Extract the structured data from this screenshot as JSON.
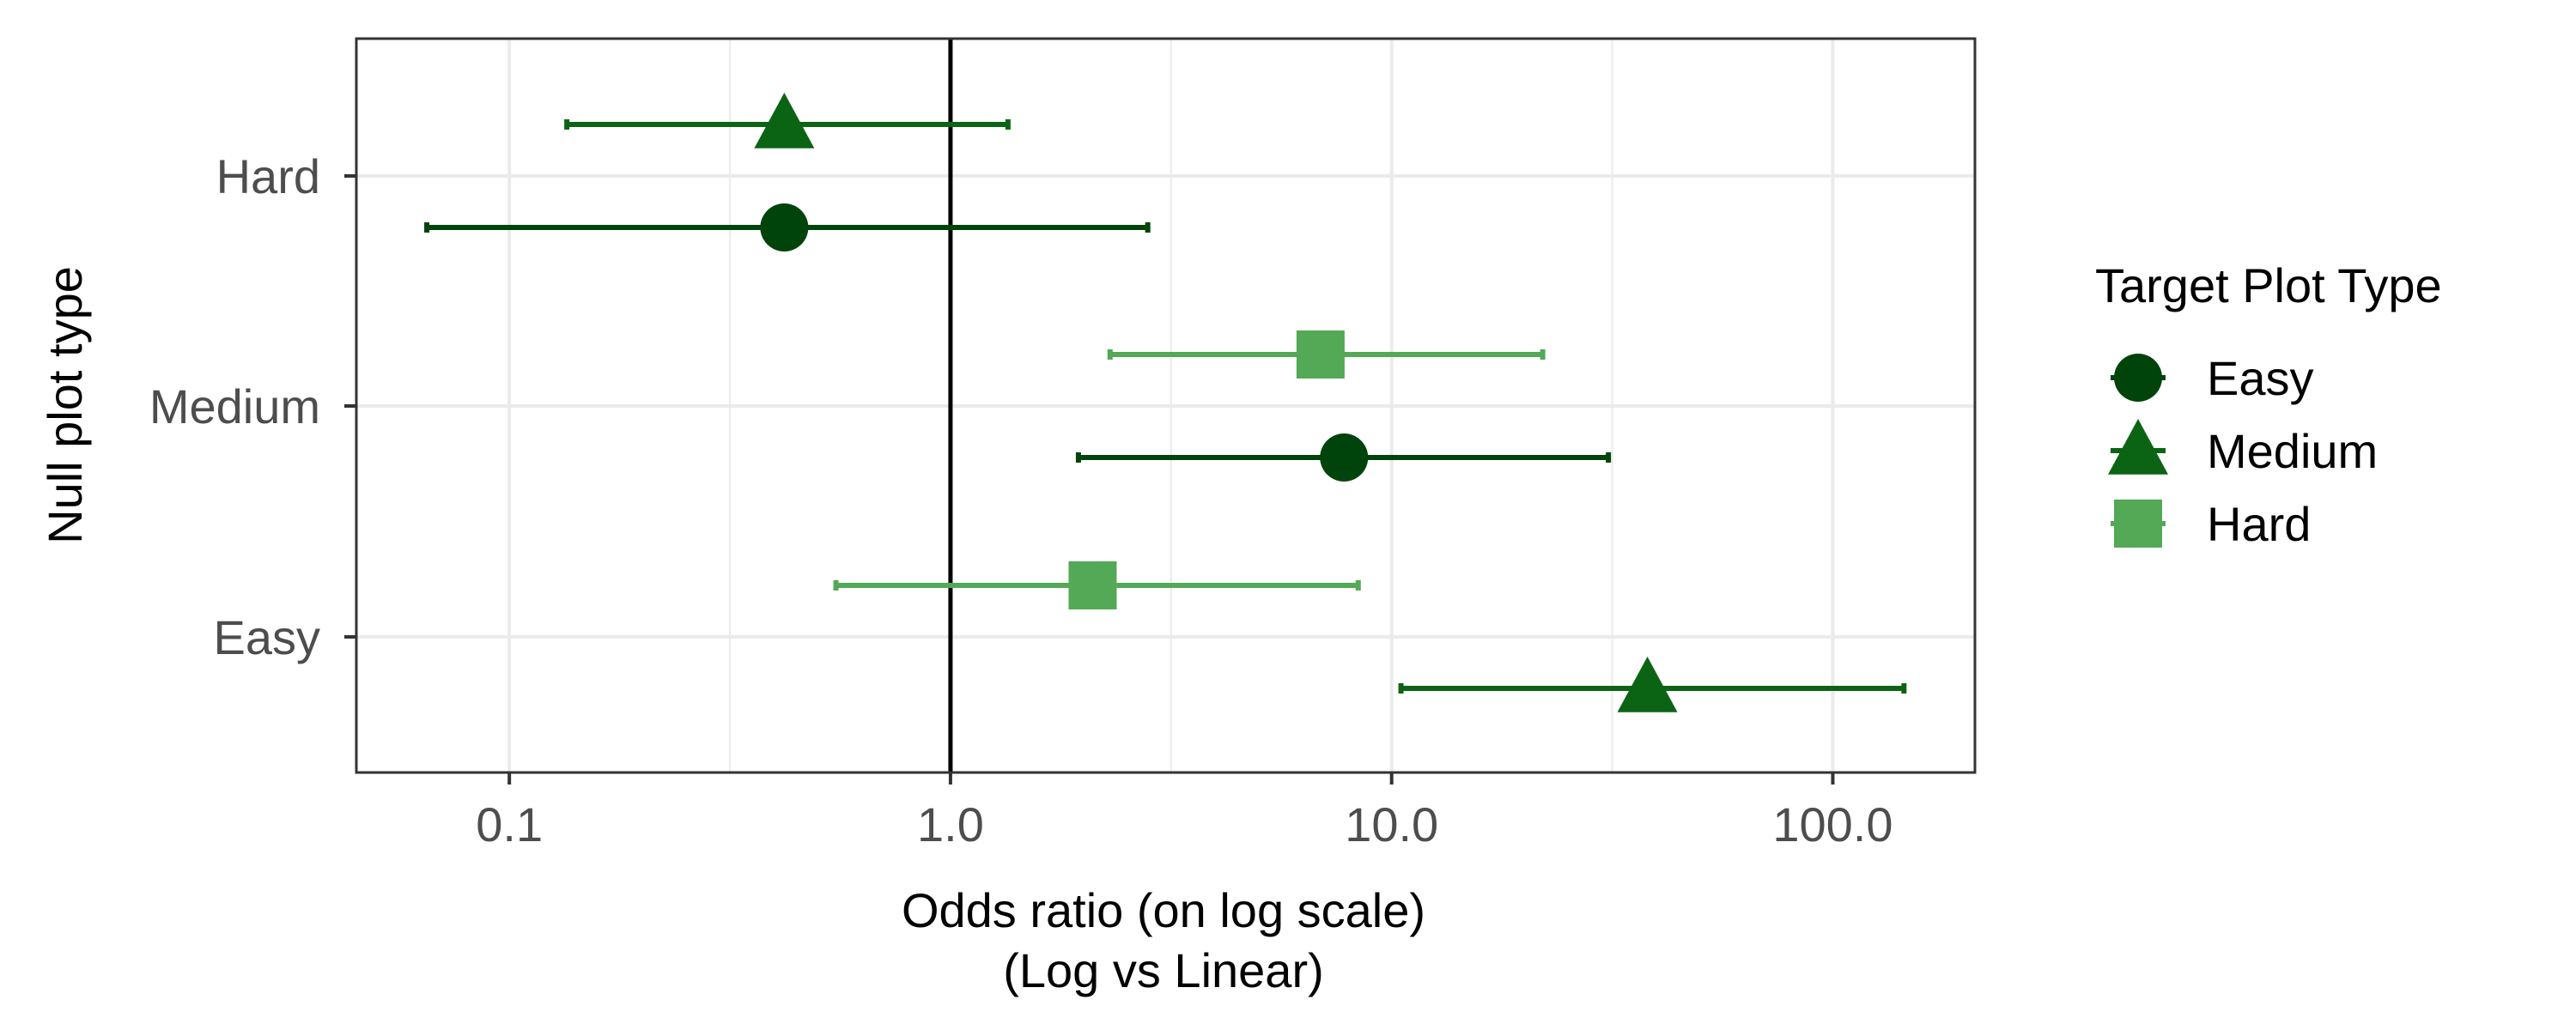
{
  "chart_data": {
    "type": "scatter",
    "title": "",
    "xlabel": "Odds ratio (on log scale)",
    "xlabel_line2": "(Log vs Linear)",
    "ylabel": "Null plot type",
    "x_scale": "log10",
    "xlim": [
      0.045,
      210
    ],
    "x_ticks": [
      0.1,
      1.0,
      10.0,
      100.0
    ],
    "x_tick_labels": [
      "0.1",
      "1.0",
      "10.0",
      "100.0"
    ],
    "categories": [
      "Easy",
      "Medium",
      "Hard"
    ],
    "reference_line_x": 1.0,
    "grid": true,
    "legend": {
      "title": "Target Plot Type",
      "placement": "right",
      "entries": [
        "Easy",
        "Medium",
        "Hard"
      ]
    },
    "series": [
      {
        "name": "Easy",
        "shape": "circle",
        "color": "#00440b",
        "points": [
          {
            "category": "Hard",
            "estimate": 0.42,
            "lower": 0.065,
            "upper": 2.8
          },
          {
            "category": "Medium",
            "estimate": 7.8,
            "lower": 1.95,
            "upper": 31
          }
        ]
      },
      {
        "name": "Medium",
        "shape": "triangle",
        "color": "#0b6413",
        "points": [
          {
            "category": "Hard",
            "estimate": 0.42,
            "lower": 0.135,
            "upper": 1.35
          },
          {
            "category": "Easy",
            "estimate": 38,
            "lower": 10.5,
            "upper": 145
          }
        ]
      },
      {
        "name": "Hard",
        "shape": "square",
        "color": "#53a955",
        "points": [
          {
            "category": "Medium",
            "estimate": 6.9,
            "lower": 2.3,
            "upper": 22
          },
          {
            "category": "Easy",
            "estimate": 2.1,
            "lower": 0.55,
            "upper": 8.4
          }
        ]
      }
    ]
  }
}
